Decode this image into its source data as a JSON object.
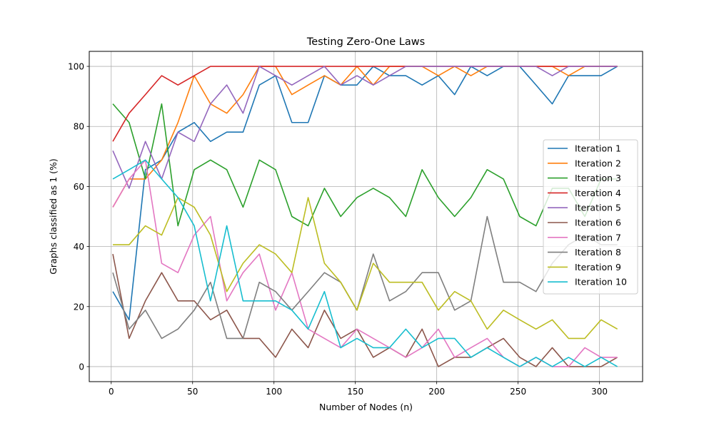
{
  "chart_data": {
    "type": "line",
    "title": "Testing Zero-One Laws",
    "xlabel": "Number of Nodes (n)",
    "ylabel": "Graphs classified as 1 (%)",
    "xlim": [
      -13.5,
      326.5
    ],
    "ylim": [
      -5,
      105
    ],
    "xticks": [
      0,
      50,
      100,
      150,
      200,
      250,
      300
    ],
    "yticks": [
      0,
      20,
      40,
      60,
      80,
      100
    ],
    "grid": true,
    "legend_position": "center-right",
    "x": [
      1,
      11,
      21,
      31,
      41,
      51,
      61,
      71,
      81,
      91,
      101,
      111,
      121,
      131,
      141,
      151,
      161,
      171,
      181,
      191,
      201,
      211,
      221,
      231,
      241,
      251,
      261,
      271,
      281,
      291,
      301,
      311
    ],
    "series": [
      {
        "name": "Iteration 1",
        "color": "#1f77b4",
        "values": [
          25,
          15.6,
          65.6,
          68.8,
          78.1,
          81.3,
          75,
          78.1,
          78.1,
          93.8,
          96.9,
          81.3,
          81.3,
          96.9,
          93.8,
          93.8,
          100,
          96.9,
          96.9,
          93.8,
          96.9,
          90.6,
          100,
          96.9,
          100,
          100,
          93.8,
          87.5,
          96.9,
          96.9,
          96.9,
          100
        ]
      },
      {
        "name": "Iteration 2",
        "color": "#ff7f0e",
        "values": [
          53.1,
          62.5,
          62.5,
          68.8,
          81.3,
          96.9,
          87.5,
          84.4,
          90.6,
          100,
          100,
          90.6,
          93.8,
          96.9,
          93.8,
          100,
          93.8,
          100,
          100,
          100,
          96.9,
          100,
          96.9,
          100,
          100,
          100,
          100,
          100,
          96.9,
          100,
          100,
          100
        ]
      },
      {
        "name": "Iteration 3",
        "color": "#2ca02c",
        "values": [
          87.5,
          81.3,
          62.5,
          87.5,
          46.9,
          65.6,
          68.8,
          65.6,
          53.1,
          68.8,
          65.6,
          50,
          46.9,
          59.4,
          50,
          56.3,
          59.4,
          56.3,
          50,
          65.6,
          56.3,
          50,
          56.3,
          65.6,
          62.5,
          50,
          46.9,
          59.4,
          59.4,
          50,
          62.5,
          62.5
        ]
      },
      {
        "name": "Iteration 4",
        "color": "#d62728",
        "values": [
          75,
          84.4,
          90.6,
          96.9,
          93.8,
          96.9,
          100,
          100,
          100,
          100,
          100,
          100,
          100,
          100,
          100,
          100,
          100,
          100,
          100,
          100,
          100,
          100,
          100,
          100,
          100,
          100,
          100,
          100,
          100,
          100,
          100,
          100
        ]
      },
      {
        "name": "Iteration 5",
        "color": "#9467bd",
        "values": [
          71.9,
          59.4,
          75,
          62.5,
          78.1,
          75,
          87.5,
          93.8,
          84.4,
          100,
          96.9,
          93.8,
          96.9,
          100,
          93.8,
          96.9,
          93.8,
          96.9,
          100,
          100,
          100,
          100,
          100,
          100,
          100,
          100,
          100,
          96.9,
          100,
          100,
          100,
          100
        ]
      },
      {
        "name": "Iteration 6",
        "color": "#8c564b",
        "values": [
          37.5,
          9.4,
          21.9,
          31.3,
          21.9,
          21.9,
          15.6,
          18.8,
          9.4,
          9.4,
          3.1,
          12.5,
          6.3,
          18.8,
          9.4,
          12.5,
          3.1,
          6.3,
          3.1,
          12.5,
          0,
          3.1,
          3.1,
          6.3,
          9.4,
          3.1,
          0,
          6.3,
          0,
          0,
          0,
          3.1
        ]
      },
      {
        "name": "Iteration 7",
        "color": "#e377c2",
        "values": [
          53.1,
          62.5,
          68.8,
          34.4,
          31.3,
          43.8,
          50,
          21.9,
          31.3,
          37.5,
          18.8,
          31.3,
          12.5,
          9.4,
          6.3,
          12.5,
          9.4,
          6.3,
          3.1,
          6.3,
          12.5,
          3.1,
          6.3,
          9.4,
          3.1,
          0,
          3.1,
          0,
          0,
          6.3,
          3.1,
          3.1
        ]
      },
      {
        "name": "Iteration 8",
        "color": "#7f7f7f",
        "values": [
          31.3,
          12.5,
          18.8,
          9.4,
          12.5,
          18.8,
          28.1,
          9.4,
          9.4,
          28.1,
          25,
          18.8,
          25,
          31.3,
          28.1,
          18.8,
          37.5,
          21.9,
          25,
          31.3,
          31.3,
          18.8,
          21.9,
          50,
          28.1,
          28.1,
          25,
          34.4,
          40.6,
          43.8,
          40.6,
          40.6
        ]
      },
      {
        "name": "Iteration 9",
        "color": "#bcbd22",
        "values": [
          40.6,
          40.6,
          46.9,
          43.8,
          56.3,
          53.1,
          43.8,
          25,
          34.4,
          40.6,
          37.5,
          31.3,
          56.3,
          34.4,
          28.1,
          18.8,
          34.4,
          28.1,
          28.1,
          28.1,
          18.8,
          25,
          21.9,
          12.5,
          18.8,
          15.6,
          12.5,
          15.6,
          9.4,
          9.4,
          15.6,
          12.5
        ]
      },
      {
        "name": "Iteration 10",
        "color": "#17becf",
        "values": [
          62.5,
          65.6,
          68.8,
          62.5,
          56.3,
          46.9,
          21.9,
          46.9,
          21.9,
          21.9,
          21.9,
          18.8,
          12.5,
          25,
          6.3,
          9.4,
          6.3,
          6.3,
          12.5,
          6.3,
          9.4,
          9.4,
          3.1,
          6.3,
          3.1,
          0,
          3.1,
          0,
          3.1,
          0,
          3.1,
          0
        ]
      }
    ]
  }
}
